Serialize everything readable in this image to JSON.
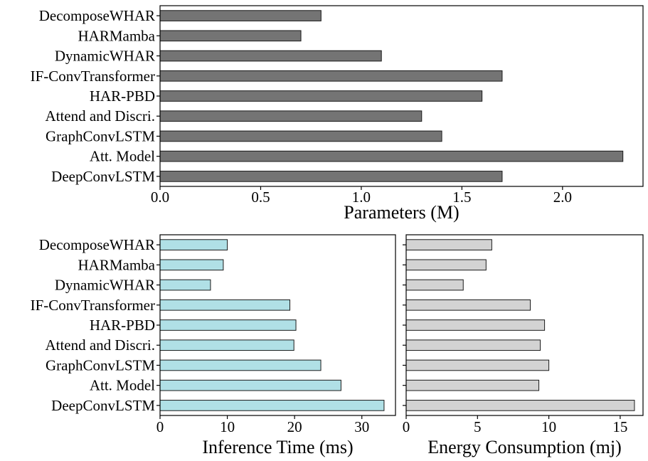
{
  "chart_data": [
    {
      "type": "bar",
      "orientation": "horizontal",
      "categories": [
        "DecomposeWHAR",
        "HARMamba",
        "DynamicWHAR",
        "IF-ConvTransformer",
        "HAR-PBD",
        "Attend and Discri.",
        "GraphConvLSTM",
        "Att. Model",
        "DeepConvLSTM"
      ],
      "values": [
        0.8,
        0.7,
        1.1,
        1.7,
        1.6,
        1.3,
        1.4,
        2.3,
        1.7
      ],
      "xlabel": "Parameters (M)",
      "xlim": [
        0,
        2.4
      ],
      "xticks": [
        0.0,
        0.5,
        1.0,
        1.5,
        2.0
      ],
      "xtick_labels": [
        "0.0",
        "0.5",
        "1.0",
        "1.5",
        "2.0"
      ],
      "bar_color": "#747474",
      "grid": false
    },
    {
      "type": "bar",
      "orientation": "horizontal",
      "categories": [
        "DecomposeWHAR",
        "HARMamba",
        "DynamicWHAR",
        "IF-ConvTransformer",
        "HAR-PBD",
        "Attend and Discri.",
        "GraphConvLSTM",
        "Att. Model",
        "DeepConvLSTM"
      ],
      "values": [
        10.0,
        9.4,
        7.5,
        19.3,
        20.2,
        19.9,
        23.9,
        26.9,
        33.3
      ],
      "xlabel": "Inference Time (ms)",
      "xlim": [
        0,
        35
      ],
      "xticks": [
        0,
        10,
        20,
        30
      ],
      "xtick_labels": [
        "0",
        "10",
        "20",
        "30"
      ],
      "bar_color": "#b0e0e6",
      "grid": false
    },
    {
      "type": "bar",
      "orientation": "horizontal",
      "categories": [
        "DecomposeWHAR",
        "HARMamba",
        "DynamicWHAR",
        "IF-ConvTransformer",
        "HAR-PBD",
        "Attend and Discri.",
        "GraphConvLSTM",
        "Att. Model",
        "DeepConvLSTM"
      ],
      "values": [
        6.0,
        5.6,
        4.0,
        8.7,
        9.7,
        9.4,
        10.0,
        9.3,
        16.0
      ],
      "xlabel": "Energy Consumption (mj)",
      "xlim": [
        0,
        16.6
      ],
      "xticks": [
        0,
        5,
        10,
        15
      ],
      "xtick_labels": [
        "0",
        "5",
        "10",
        "15"
      ],
      "bar_color": "#d3d3d3",
      "grid": false
    }
  ]
}
